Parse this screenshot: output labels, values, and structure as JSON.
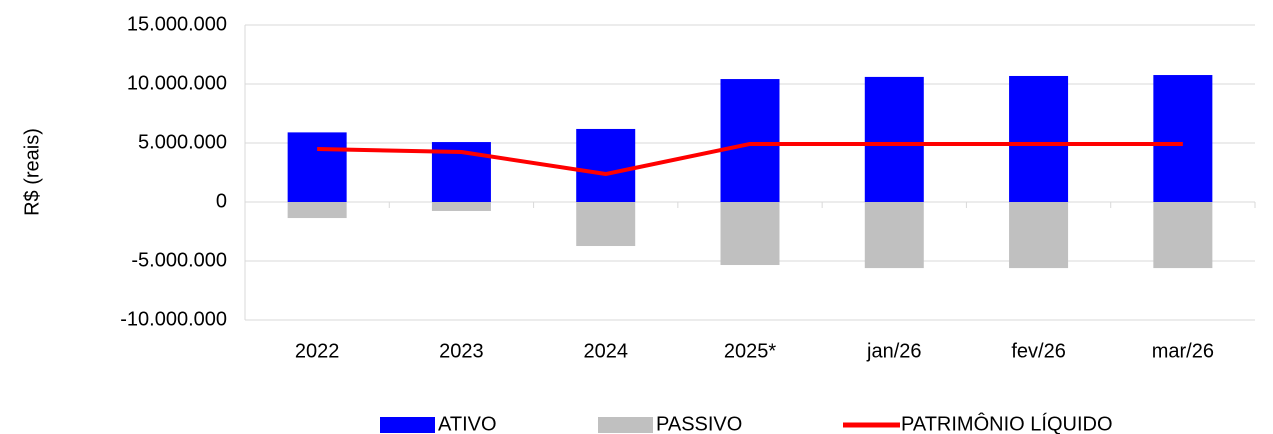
{
  "chart_data": {
    "type": "bar",
    "y_label": "R$ (reais)",
    "categories": [
      "2022",
      "2023",
      "2024",
      "2025*",
      "jan/26",
      "fev/26",
      "mar/26"
    ],
    "series": [
      {
        "name": "ATIVO",
        "color": "#0000ff",
        "type": "bar",
        "values": [
          5900000,
          5080000,
          6190000,
          10420000,
          10600000,
          10680000,
          10760000
        ]
      },
      {
        "name": "PASSIVO",
        "color": "#c0c0c0",
        "type": "bar",
        "values": [
          -1360000,
          -760000,
          -3730000,
          -5340000,
          -5600000,
          -5600000,
          -5600000
        ]
      },
      {
        "name": "PATRIMÔNIO LÍQUIDO",
        "color": "#ff0000",
        "type": "line",
        "values": [
          4490000,
          4240000,
          2370000,
          4920000,
          4920000,
          4920000,
          4920000
        ]
      }
    ],
    "ylim": [
      -10000000,
      15000000
    ],
    "yticks": [
      {
        "value": -10000000,
        "label": "-10.000.000"
      },
      {
        "value": -5000000,
        "label": "-5.000.000"
      },
      0,
      {
        "value": 5000000,
        "label": "5.000.000"
      },
      {
        "value": 10000000,
        "label": "10.000.000"
      },
      {
        "value": 15000000,
        "label": "15.000.000"
      }
    ],
    "negative_tick_color": "#ff0000",
    "grid": true,
    "legend": "bottom"
  }
}
